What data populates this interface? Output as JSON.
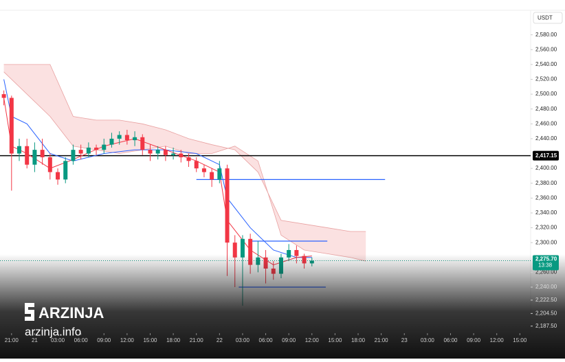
{
  "chart_data": {
    "type": "candlestick",
    "currency": "USDT",
    "up_color": "#089981",
    "down_color": "#f23645",
    "xlim": [
      -1.5,
      67.4
    ],
    "ylim": [
      2178,
      2613
    ],
    "x": [
      -1,
      0,
      1,
      2,
      3,
      4,
      5,
      6,
      7,
      8,
      9,
      10,
      11,
      12,
      13,
      14,
      15,
      16,
      17,
      18,
      19,
      20,
      21,
      22,
      23,
      24,
      25,
      26,
      27,
      28,
      29,
      30,
      31,
      32,
      33,
      34,
      35,
      36,
      37,
      38,
      39
    ],
    "open": [
      2500,
      2495,
      2420,
      2430,
      2405,
      2425,
      2415,
      2395,
      2385,
      2410,
      2425,
      2420,
      2428,
      2425,
      2432,
      2440,
      2445,
      2438,
      2442,
      2425,
      2420,
      2425,
      2418,
      2420,
      2415,
      2410,
      2400,
      2395,
      2385,
      2400,
      2300,
      2280,
      2305,
      2270,
      2280,
      2265,
      2258,
      2280,
      2290,
      2282,
      2272
    ],
    "high": [
      2505,
      2498,
      2440,
      2440,
      2435,
      2440,
      2420,
      2400,
      2415,
      2432,
      2432,
      2435,
      2432,
      2440,
      2448,
      2450,
      2452,
      2450,
      2446,
      2432,
      2430,
      2430,
      2428,
      2425,
      2420,
      2415,
      2405,
      2400,
      2410,
      2405,
      2310,
      2310,
      2312,
      2302,
      2290,
      2275,
      2285,
      2298,
      2296,
      2285,
      2280
    ],
    "low": [
      2485,
      2370,
      2410,
      2400,
      2395,
      2405,
      2385,
      2378,
      2380,
      2405,
      2412,
      2415,
      2418,
      2420,
      2428,
      2432,
      2432,
      2430,
      2418,
      2410,
      2412,
      2410,
      2412,
      2408,
      2402,
      2395,
      2388,
      2375,
      2380,
      2255,
      2240,
      2215,
      2258,
      2260,
      2245,
      2250,
      2252,
      2275,
      2272,
      2265,
      2268
    ],
    "close": [
      2495,
      2420,
      2430,
      2405,
      2425,
      2415,
      2395,
      2385,
      2410,
      2425,
      2420,
      2428,
      2425,
      2432,
      2440,
      2445,
      2438,
      2442,
      2425,
      2420,
      2425,
      2418,
      2420,
      2415,
      2410,
      2400,
      2395,
      2385,
      2400,
      2300,
      2280,
      2305,
      2270,
      2280,
      2265,
      2258,
      2280,
      2290,
      2282,
      2272,
      2275.7
    ],
    "yticks": [
      {
        "value": 2580,
        "label": "2,580.00"
      },
      {
        "value": 2560,
        "label": "2,560.00"
      },
      {
        "value": 2540,
        "label": "2,540.00"
      },
      {
        "value": 2520,
        "label": "2,520.00"
      },
      {
        "value": 2500,
        "label": "2,500.00"
      },
      {
        "value": 2480,
        "label": "2,480.00"
      },
      {
        "value": 2460,
        "label": "2,460.00"
      },
      {
        "value": 2440,
        "label": "2,440.00"
      },
      {
        "value": 2400,
        "label": "2,400.00"
      },
      {
        "value": 2380,
        "label": "2,380.00"
      },
      {
        "value": 2360,
        "label": "2,360.00"
      },
      {
        "value": 2340,
        "label": "2,340.00"
      },
      {
        "value": 2320,
        "label": "2,320.00"
      },
      {
        "value": 2300,
        "label": "2,300.00"
      },
      {
        "value": 2260,
        "label": "2,260.00"
      },
      {
        "value": 2240,
        "label": "2,240.00"
      },
      {
        "value": 2222.5,
        "label": "2,222.50"
      },
      {
        "value": 2204.5,
        "label": "2,204.50"
      },
      {
        "value": 2187.5,
        "label": "2,187.50"
      }
    ],
    "xticks": [
      {
        "value": 0,
        "label": "21:00"
      },
      {
        "value": 3,
        "label": "21"
      },
      {
        "value": 6,
        "label": "03:00"
      },
      {
        "value": 9,
        "label": "06:00"
      },
      {
        "value": 12,
        "label": "09:00"
      },
      {
        "value": 15,
        "label": "12:00"
      },
      {
        "value": 18,
        "label": "15:00"
      },
      {
        "value": 21,
        "label": "18:00"
      },
      {
        "value": 24,
        "label": "21:00"
      },
      {
        "value": 27,
        "label": "22"
      },
      {
        "value": 30,
        "label": "03:00"
      },
      {
        "value": 33,
        "label": "06:00"
      },
      {
        "value": 36,
        "label": "09:00"
      },
      {
        "value": 39,
        "label": "12:00"
      },
      {
        "value": 42,
        "label": "15:00"
      },
      {
        "value": 45,
        "label": "18:00"
      },
      {
        "value": 48,
        "label": "21:00"
      },
      {
        "value": 51,
        "label": "23"
      },
      {
        "value": 54,
        "label": "03:00"
      },
      {
        "value": 57,
        "label": "06:00"
      },
      {
        "value": 60,
        "label": "09:00"
      },
      {
        "value": 63,
        "label": "12:00"
      },
      {
        "value": 66,
        "label": "15:00"
      }
    ],
    "cloud": {
      "color": "#f7c9c9",
      "edge_color": "#e8a0a0",
      "x": [
        -1,
        2,
        5,
        8,
        11,
        14,
        17,
        20,
        23,
        26,
        29,
        32,
        35,
        38,
        41,
        44,
        46
      ],
      "span_b": [
        2540,
        2540,
        2540,
        2470,
        2465,
        2465,
        2460,
        2452,
        2440,
        2432,
        2425,
        2395,
        2330,
        2325,
        2320,
        2315,
        2315
      ],
      "span_a": [
        2530,
        2500,
        2470,
        2430,
        2425,
        2420,
        2425,
        2430,
        2420,
        2420,
        2430,
        2410,
        2310,
        2290,
        2285,
        2280,
        2275
      ]
    },
    "indicator_lines": [
      {
        "color": "#2962ff",
        "x": [
          -1,
          0,
          2,
          5,
          8,
          12,
          16,
          20,
          24,
          27,
          28,
          31,
          34,
          37,
          39
        ],
        "values": [
          2520,
          2470,
          2460,
          2420,
          2410,
          2420,
          2425,
          2425,
          2420,
          2405,
          2360,
          2320,
          2290,
          2280,
          2280
        ]
      },
      {
        "color": "#f23645",
        "x": [
          -1,
          0,
          2,
          5,
          8,
          12,
          16,
          20,
          24,
          27,
          28,
          31,
          34,
          37,
          39
        ],
        "values": [
          2495,
          2430,
          2420,
          2400,
          2412,
          2430,
          2440,
          2425,
          2410,
          2395,
          2330,
          2290,
          2270,
          2280,
          2282
        ]
      }
    ],
    "levels": [
      {
        "value": 2385,
        "color": "#2962ff",
        "x": [
          24,
          48.5
        ]
      },
      {
        "value": 2302,
        "color": "#2962ff",
        "x": [
          31,
          41
        ]
      },
      {
        "value": 2240,
        "color": "#2962ff",
        "x": [
          29.5,
          40.8
        ]
      }
    ],
    "key_level": {
      "value": 2417.15,
      "label": "2,417.15",
      "color": "#000000"
    },
    "price_line": {
      "value": 2275.7,
      "label": "2,275.70",
      "countdown": "13:38",
      "color": "#089981"
    }
  },
  "watermark": {
    "brand": "ARZINJA",
    "site": "arzinja.info"
  }
}
